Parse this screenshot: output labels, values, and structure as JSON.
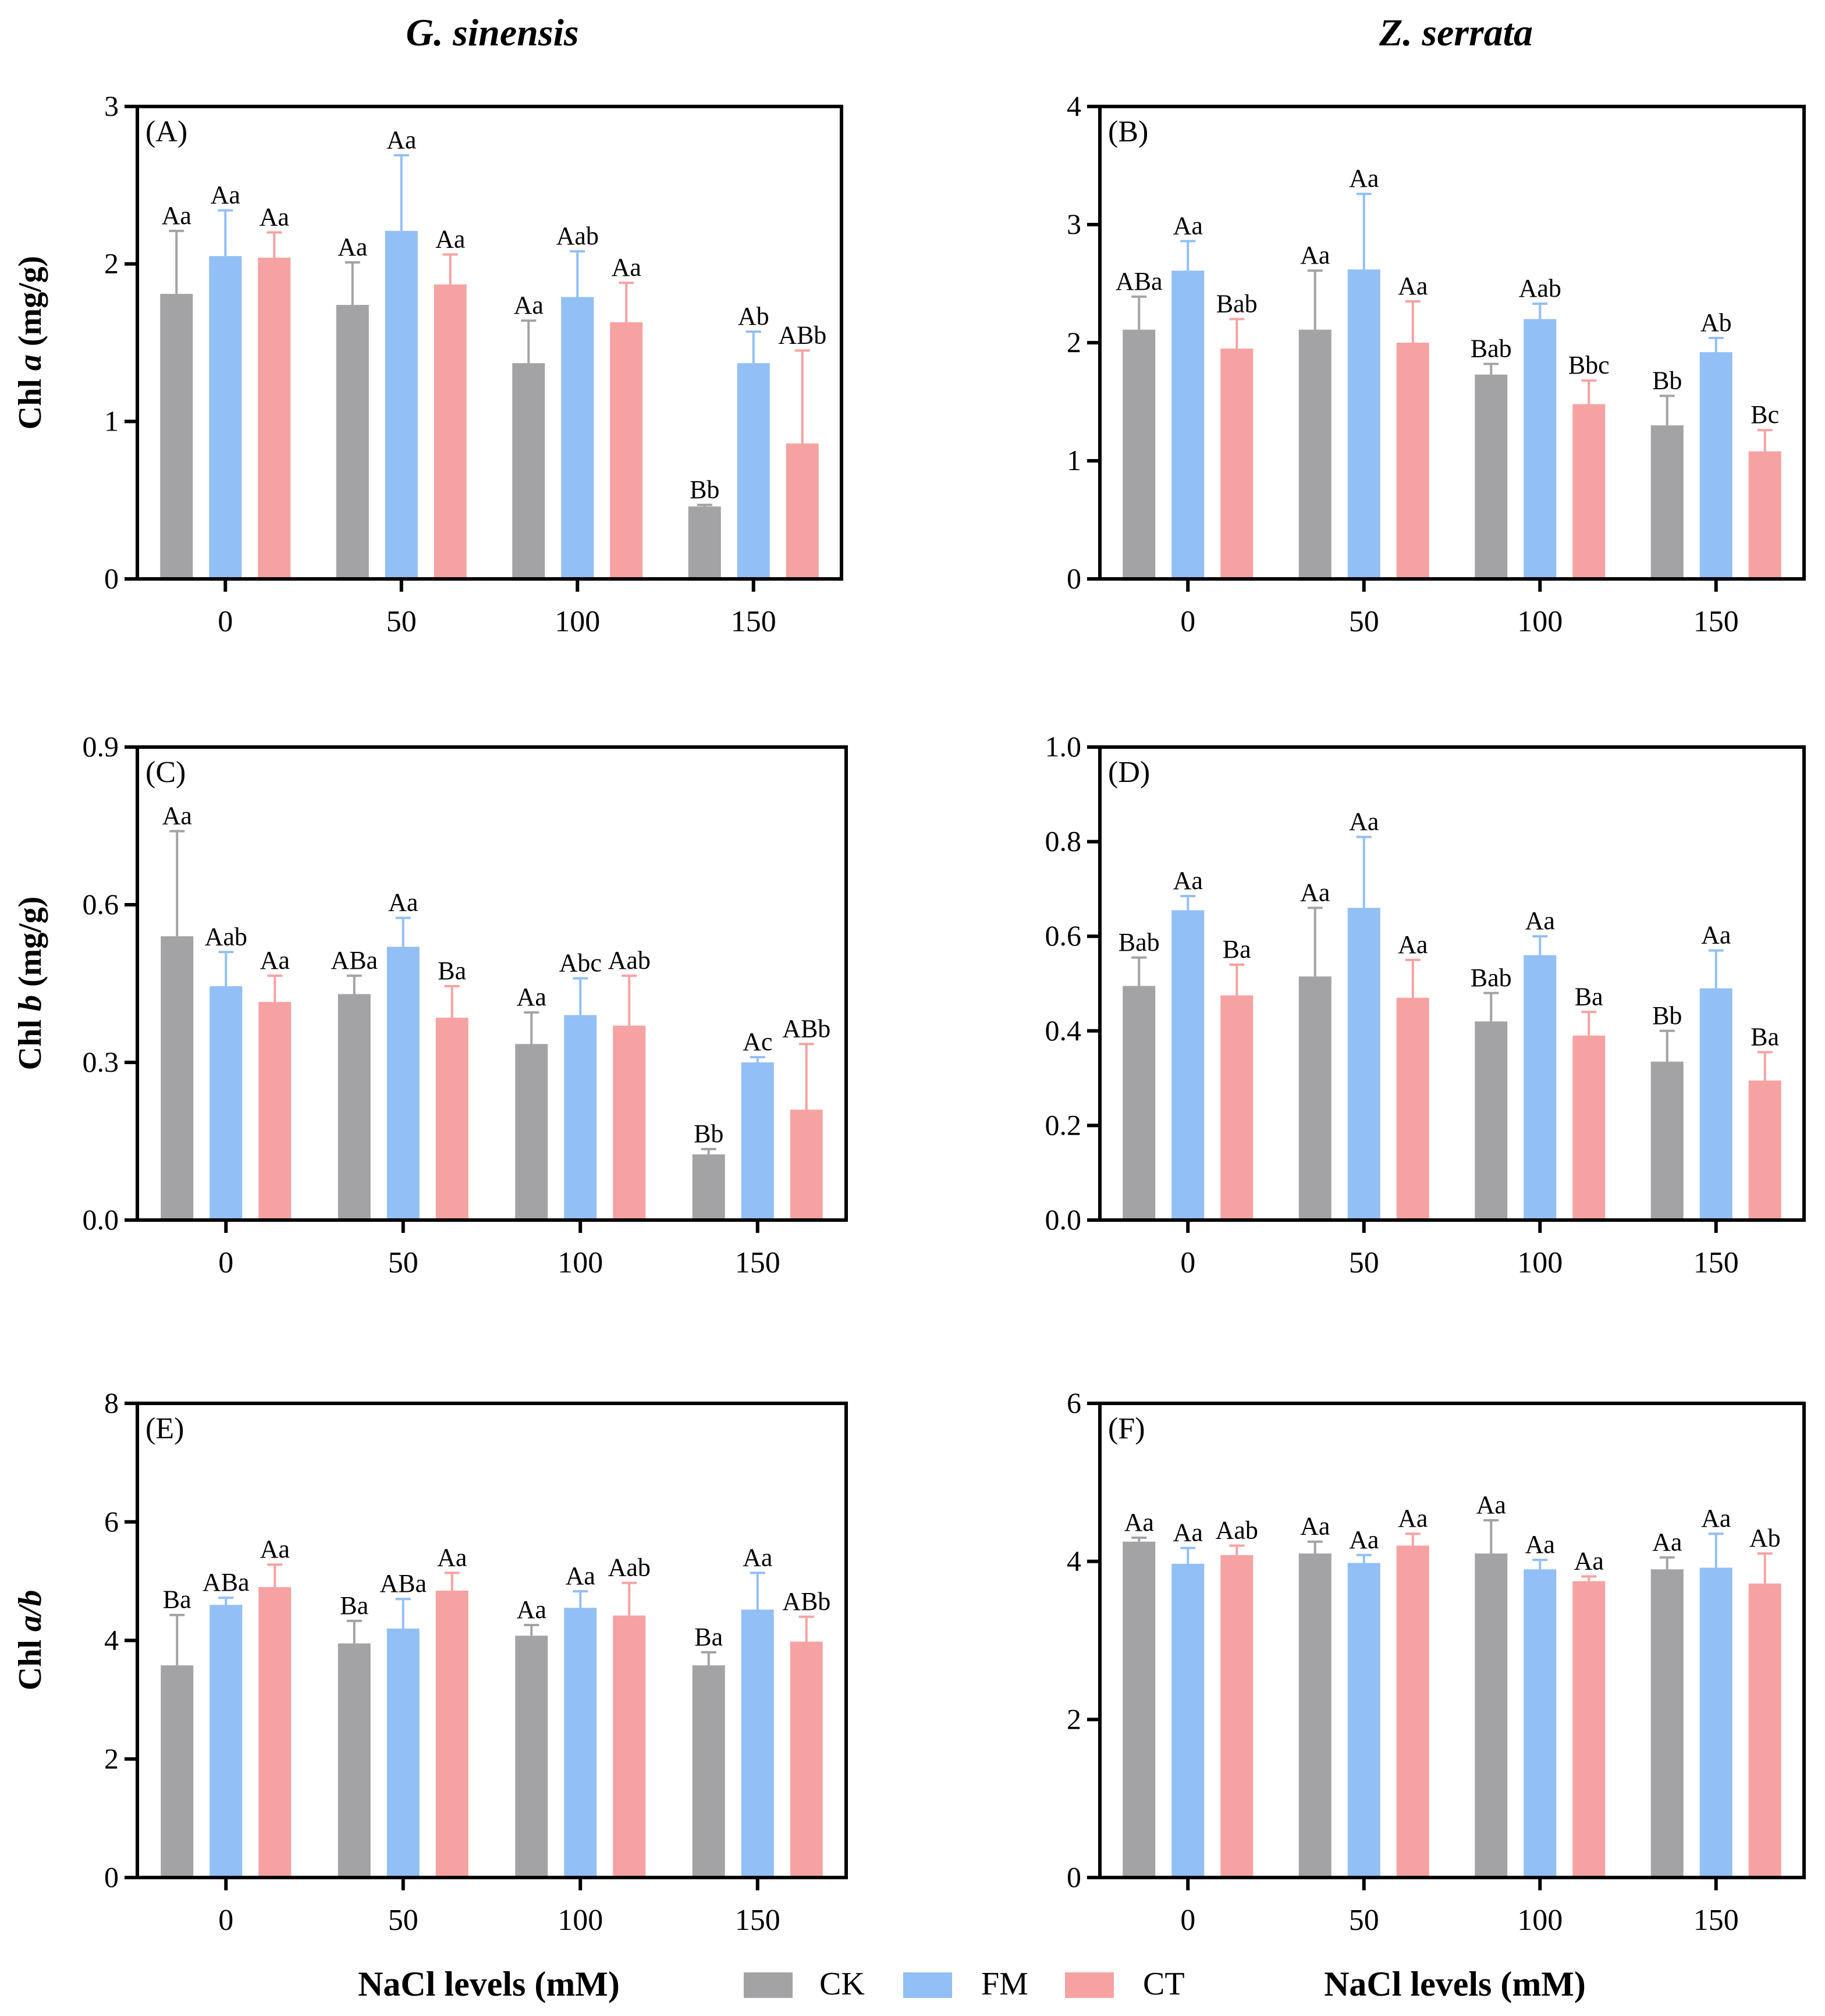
{
  "figure": {
    "col_titles": [
      "G. sinensis",
      "Z. serrata"
    ],
    "xlabel": "NaCl levels (mM)",
    "legend": [
      {
        "label": "CK",
        "color": "#a3a3a5"
      },
      {
        "label": "FM",
        "color": "#92bff5"
      },
      {
        "label": "CT",
        "color": "#f6a2a2"
      }
    ]
  },
  "chart_data": [
    {
      "type": "bar",
      "panel": "(A)",
      "ylabel": "Chl a (mg/g)",
      "categories": [
        "0",
        "50",
        "100",
        "150"
      ],
      "ylim": [
        0,
        3
      ],
      "yticks": [
        "0",
        "1",
        "2",
        "3"
      ],
      "series": [
        {
          "name": "CK",
          "values": [
            1.81,
            1.74,
            1.37,
            0.46
          ],
          "errors": [
            0.4,
            0.27,
            0.27,
            0.01
          ],
          "letters": [
            "Aa",
            "Aa",
            "Aa",
            "Bb"
          ]
        },
        {
          "name": "FM",
          "values": [
            2.05,
            2.21,
            1.79,
            1.37
          ],
          "errors": [
            0.29,
            0.48,
            0.29,
            0.2
          ],
          "letters": [
            "Aa",
            "Aa",
            "Aab",
            "Ab"
          ]
        },
        {
          "name": "CT",
          "values": [
            2.04,
            1.87,
            1.63,
            0.86
          ],
          "errors": [
            0.16,
            0.19,
            0.25,
            0.59
          ],
          "letters": [
            "Aa",
            "Aa",
            "Aa",
            "ABb"
          ]
        }
      ]
    },
    {
      "type": "bar",
      "panel": "(B)",
      "ylabel": "",
      "categories": [
        "0",
        "50",
        "100",
        "150"
      ],
      "ylim": [
        0,
        4
      ],
      "yticks": [
        "0",
        "1",
        "2",
        "3",
        "4"
      ],
      "series": [
        {
          "name": "CK",
          "values": [
            2.11,
            2.11,
            1.73,
            1.3
          ],
          "errors": [
            0.28,
            0.5,
            0.09,
            0.25
          ],
          "letters": [
            "ABa",
            "Aa",
            "Bab",
            "Bb"
          ]
        },
        {
          "name": "FM",
          "values": [
            2.61,
            2.62,
            2.2,
            1.92
          ],
          "errors": [
            0.25,
            0.64,
            0.13,
            0.12
          ],
          "letters": [
            "Aa",
            "Aa",
            "Aab",
            "Ab"
          ]
        },
        {
          "name": "CT",
          "values": [
            1.95,
            2.0,
            1.48,
            1.08
          ],
          "errors": [
            0.25,
            0.35,
            0.2,
            0.18
          ],
          "letters": [
            "Bab",
            "Aa",
            "Bbc",
            "Bc"
          ]
        }
      ]
    },
    {
      "type": "bar",
      "panel": "(C)",
      "ylabel": "Chl b (mg/g)",
      "categories": [
        "0",
        "50",
        "100",
        "150"
      ],
      "ylim": [
        0,
        0.9
      ],
      "yticks": [
        "0.0",
        "0.3",
        "0.6",
        "0.9"
      ],
      "series": [
        {
          "name": "CK",
          "values": [
            0.54,
            0.43,
            0.335,
            0.125
          ],
          "errors": [
            0.2,
            0.035,
            0.06,
            0.01
          ],
          "letters": [
            "Aa",
            "ABa",
            "Aa",
            "Bb"
          ]
        },
        {
          "name": "FM",
          "values": [
            0.445,
            0.52,
            0.39,
            0.3
          ],
          "errors": [
            0.065,
            0.055,
            0.07,
            0.01
          ],
          "letters": [
            "Aab",
            "Aa",
            "Abc",
            "Ac"
          ]
        },
        {
          "name": "CT",
          "values": [
            0.415,
            0.385,
            0.37,
            0.21
          ],
          "errors": [
            0.05,
            0.06,
            0.095,
            0.125
          ],
          "letters": [
            "Aa",
            "Ba",
            "Aab",
            "ABb"
          ]
        }
      ]
    },
    {
      "type": "bar",
      "panel": "(D)",
      "ylabel": "",
      "categories": [
        "0",
        "50",
        "100",
        "150"
      ],
      "ylim": [
        0,
        1.0
      ],
      "yticks": [
        "0.0",
        "0.2",
        "0.4",
        "0.6",
        "0.8",
        "1.0"
      ],
      "series": [
        {
          "name": "CK",
          "values": [
            0.495,
            0.515,
            0.42,
            0.335
          ],
          "errors": [
            0.06,
            0.145,
            0.06,
            0.065
          ],
          "letters": [
            "Bab",
            "Aa",
            "Bab",
            "Bb"
          ]
        },
        {
          "name": "FM",
          "values": [
            0.655,
            0.66,
            0.56,
            0.49
          ],
          "errors": [
            0.03,
            0.15,
            0.04,
            0.08
          ],
          "letters": [
            "Aa",
            "Aa",
            "Aa",
            "Aa"
          ]
        },
        {
          "name": "CT",
          "values": [
            0.475,
            0.47,
            0.39,
            0.295
          ],
          "errors": [
            0.065,
            0.08,
            0.05,
            0.06
          ],
          "letters": [
            "Ba",
            "Aa",
            "Ba",
            "Ba"
          ]
        }
      ]
    },
    {
      "type": "bar",
      "panel": "(E)",
      "ylabel": "Chl a/b",
      "categories": [
        "0",
        "50",
        "100",
        "150"
      ],
      "ylim": [
        0,
        8
      ],
      "yticks": [
        "0",
        "2",
        "4",
        "6",
        "8"
      ],
      "series": [
        {
          "name": "CK",
          "values": [
            3.58,
            3.95,
            4.08,
            3.58
          ],
          "errors": [
            0.85,
            0.38,
            0.18,
            0.22
          ],
          "letters": [
            "Ba",
            "Ba",
            "Aa",
            "Ba"
          ]
        },
        {
          "name": "FM",
          "values": [
            4.6,
            4.2,
            4.55,
            4.52
          ],
          "errors": [
            0.12,
            0.5,
            0.28,
            0.62
          ],
          "letters": [
            "ABa",
            "ABa",
            "Aa",
            "Aa"
          ]
        },
        {
          "name": "CT",
          "values": [
            4.9,
            4.84,
            4.42,
            3.98
          ],
          "errors": [
            0.38,
            0.3,
            0.55,
            0.42
          ],
          "letters": [
            "Aa",
            "Aa",
            "Aab",
            "ABb"
          ]
        }
      ]
    },
    {
      "type": "bar",
      "panel": "(F)",
      "ylabel": "",
      "categories": [
        "0",
        "50",
        "100",
        "150"
      ],
      "ylim": [
        0,
        6
      ],
      "yticks": [
        "0",
        "2",
        "4",
        "6"
      ],
      "series": [
        {
          "name": "CK",
          "values": [
            4.25,
            4.1,
            4.1,
            3.9
          ],
          "errors": [
            0.05,
            0.15,
            0.42,
            0.15
          ],
          "letters": [
            "Aa",
            "Aa",
            "Aa",
            "Aa"
          ]
        },
        {
          "name": "FM",
          "values": [
            3.97,
            3.98,
            3.9,
            3.92
          ],
          "errors": [
            0.2,
            0.1,
            0.12,
            0.43
          ],
          "letters": [
            "Aa",
            "Aa",
            "Aa",
            "Aa"
          ]
        },
        {
          "name": "CT",
          "values": [
            4.08,
            4.2,
            3.75,
            3.72
          ],
          "errors": [
            0.12,
            0.15,
            0.06,
            0.38
          ],
          "letters": [
            "Aab",
            "Aa",
            "Aa",
            "Ab"
          ]
        }
      ]
    }
  ]
}
